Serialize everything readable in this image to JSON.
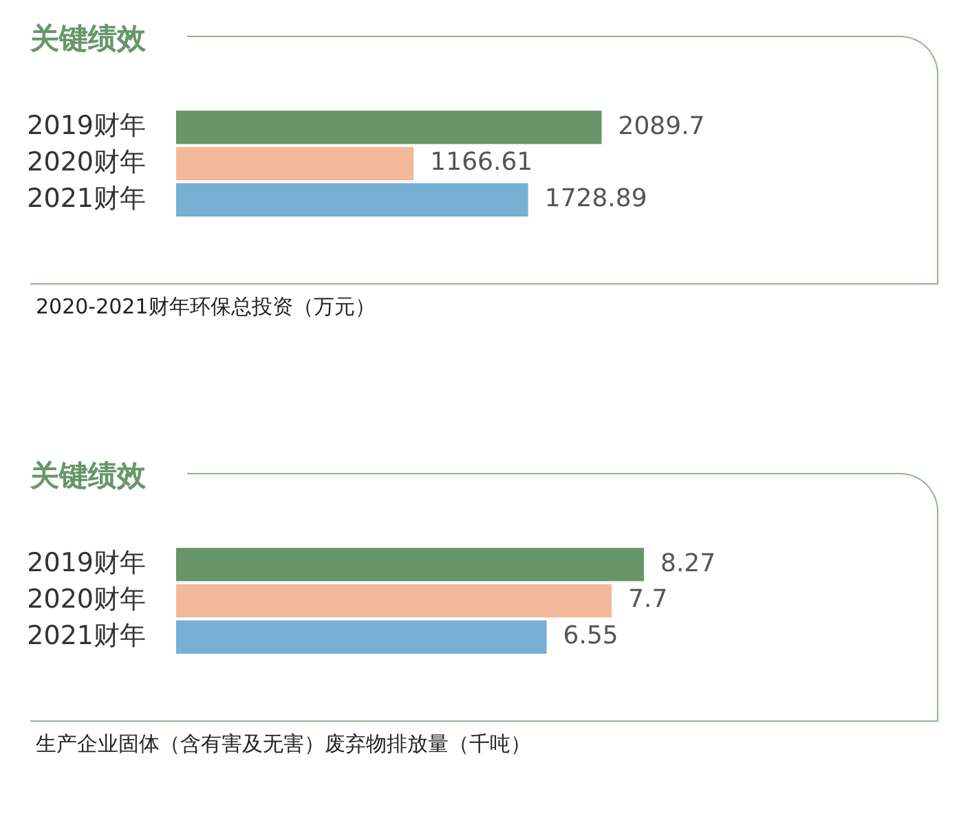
{
  "chart_data": [
    {
      "type": "bar",
      "orientation": "horizontal",
      "title": "关键绩效",
      "categories": [
        "2019财年",
        "2020财年",
        "2021财年"
      ],
      "values": [
        2089.7,
        1166.61,
        1728.89
      ],
      "colors": [
        "#67966a",
        "#f2b99a",
        "#76afd3"
      ],
      "data_labels": true,
      "annotations": [
        "2020-2021财年环保总投资（万元）"
      ]
    },
    {
      "type": "bar",
      "orientation": "horizontal",
      "title": "关键绩效",
      "categories": [
        "2019财年",
        "2020财年",
        "2021财年"
      ],
      "values": [
        8.27,
        7.7,
        6.55
      ],
      "colors": [
        "#67966a",
        "#f2b99a",
        "#76afd3"
      ],
      "data_labels": true,
      "annotations": [
        "生产企业固体（含有害及无害）废弃物排放量（千吨）"
      ]
    }
  ]
}
